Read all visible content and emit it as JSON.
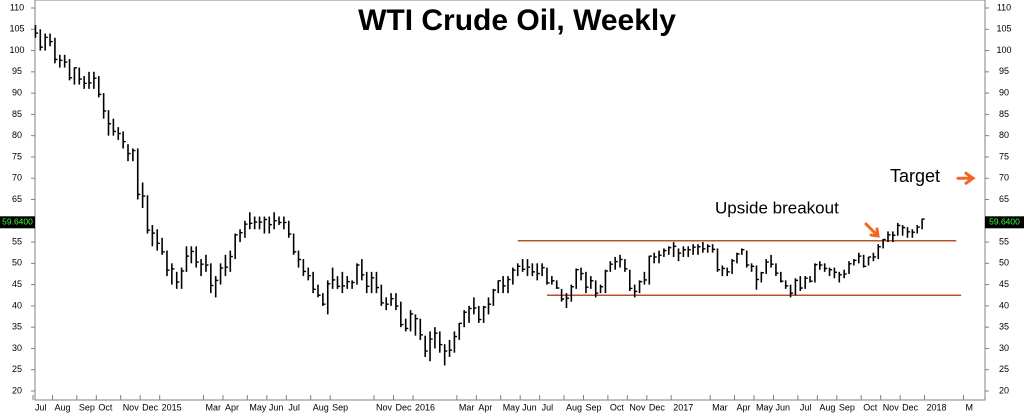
{
  "chart_data": {
    "type": "ohlc",
    "title": "WTI Crude Oil, Weekly",
    "categories": [
      "Jul",
      null,
      null,
      null,
      "Aug",
      null,
      null,
      null,
      null,
      "Sep",
      null,
      null,
      null,
      "Oct",
      null,
      null,
      null,
      null,
      "Nov",
      null,
      null,
      null,
      "Dec",
      null,
      null,
      null,
      "2015",
      null,
      null,
      null,
      null,
      null,
      null,
      null,
      null,
      "Mar",
      null,
      null,
      null,
      "Apr",
      null,
      null,
      null,
      null,
      "May",
      null,
      null,
      null,
      "Jun",
      null,
      null,
      null,
      "Jul",
      null,
      null,
      null,
      null,
      "Aug",
      null,
      null,
      null,
      "Sep",
      null,
      null,
      null,
      null,
      null,
      null,
      null,
      null,
      "Nov",
      null,
      null,
      null,
      "Dec",
      null,
      null,
      null,
      "2016",
      null,
      null,
      null,
      null,
      null,
      null,
      null,
      null,
      "Mar",
      null,
      null,
      null,
      "Apr",
      null,
      null,
      null,
      null,
      "May",
      null,
      null,
      null,
      "Jun",
      null,
      null,
      null,
      "Jul",
      null,
      null,
      null,
      null,
      "Aug",
      null,
      null,
      null,
      "Sep",
      null,
      null,
      null,
      null,
      "Oct",
      null,
      null,
      null,
      "Nov",
      null,
      null,
      null,
      "Dec",
      null,
      null,
      null,
      null,
      "2017",
      null,
      null,
      null,
      null,
      null,
      null,
      null,
      "Mar",
      null,
      null,
      null,
      null,
      "Apr",
      null,
      null,
      null,
      "May",
      null,
      null,
      null,
      "Jun",
      null,
      null,
      null,
      null,
      "Jul",
      null,
      null,
      null,
      "Aug",
      null,
      null,
      null,
      "Sep",
      null,
      null,
      null,
      null,
      "Oct",
      null,
      null,
      null,
      "Nov",
      null,
      null,
      null,
      "Dec",
      null,
      null,
      null,
      null,
      "2018",
      null,
      null,
      null,
      null,
      null,
      null,
      null,
      "M",
      null,
      null,
      null
    ],
    "high": [
      106,
      105,
      104,
      104,
      103,
      99,
      99,
      98,
      96,
      96,
      94,
      95,
      95,
      94,
      90,
      86,
      84,
      82,
      81,
      78,
      77,
      77,
      69,
      66,
      59,
      58,
      56,
      53,
      50,
      48,
      49,
      54,
      54,
      54,
      51,
      52,
      50,
      47,
      50,
      52,
      53,
      57,
      58,
      60,
      62,
      61,
      61,
      61,
      61,
      62,
      61,
      61,
      60,
      57,
      53,
      51,
      49,
      48,
      45,
      43,
      46,
      49,
      47,
      48,
      47,
      46,
      50,
      51,
      48,
      48,
      48,
      45,
      42,
      43,
      43,
      41,
      37,
      39,
      38,
      37,
      33,
      34,
      35,
      34,
      31,
      32,
      34,
      36,
      39,
      40,
      42,
      40,
      40,
      42,
      44,
      46,
      47,
      47,
      49,
      50,
      51,
      51,
      50,
      50,
      50,
      49,
      47,
      46,
      44,
      43,
      45,
      48.8,
      49,
      48,
      47,
      46,
      45,
      48.5,
      50.5,
      51.5,
      52,
      51,
      48.5,
      45,
      46,
      48,
      51.8,
      52.5,
      53,
      53.5,
      54,
      55,
      53.5,
      54,
      54,
      54.5,
      54.5,
      55,
      54.5,
      54.5,
      53.5,
      49.5,
      49,
      51,
      52.5,
      53.5,
      53,
      50,
      49.5,
      48,
      51,
      52,
      50,
      48,
      46,
      45,
      46.5,
      47,
      47,
      47,
      50,
      50.5,
      50,
      49,
      49,
      48,
      48.5,
      50.5,
      51,
      52.5,
      52,
      51.5,
      52.5,
      54.5,
      55.7,
      57.5,
      57.5,
      59.5,
      59,
      58.5,
      58,
      59,
      60.5,
      null,
      null,
      null,
      null,
      null,
      null,
      null,
      null,
      null,
      null,
      null,
      null
    ],
    "low": [
      103,
      100,
      100,
      101,
      97,
      96,
      96,
      93,
      92,
      92,
      91,
      91,
      91,
      89,
      84,
      80,
      80,
      79,
      77,
      74,
      74,
      65,
      63,
      57,
      54,
      53,
      52,
      47,
      45,
      44,
      44,
      48,
      50,
      49,
      47,
      48,
      43,
      42,
      45,
      47,
      48,
      51,
      55,
      56,
      58,
      58,
      58,
      57,
      57,
      58,
      59,
      58,
      56,
      52,
      49,
      47,
      46,
      43,
      42,
      40,
      38,
      44,
      44,
      43,
      44,
      44,
      45,
      46,
      43,
      43,
      43,
      40,
      39,
      40,
      39,
      35,
      34,
      34,
      33,
      32,
      28,
      27,
      30,
      29,
      26,
      28,
      29,
      32,
      35,
      36,
      38,
      36,
      36,
      38,
      40,
      43,
      43,
      43,
      45,
      47,
      48,
      47,
      47,
      46,
      47,
      45,
      45,
      44,
      41,
      39.5,
      41,
      44,
      46,
      43,
      44,
      42,
      43,
      43,
      48,
      48.5,
      49,
      48,
      43.5,
      42,
      43,
      45,
      45,
      50,
      50,
      51.5,
      52,
      51.5,
      50.5,
      51.5,
      51.5,
      52,
      52,
      52.5,
      52.5,
      52.5,
      48,
      47,
      47,
      47.5,
      50,
      52,
      49,
      48,
      43.8,
      45.5,
      47.5,
      49,
      47,
      45.5,
      44,
      42,
      42.5,
      43.5,
      44,
      45.5,
      45.5,
      48.5,
      48,
      47,
      46.5,
      45.5,
      46.5,
      47.5,
      49.5,
      50,
      49,
      49.5,
      50.5,
      51,
      53.5,
      55,
      55,
      56.5,
      56.5,
      56,
      56,
      57,
      58,
      null,
      null,
      null,
      null,
      null,
      null,
      null,
      null,
      null,
      null,
      null,
      null
    ],
    "close": [
      104.1,
      100.8,
      103.1,
      102.1,
      97.9,
      97.7,
      97.3,
      93.6,
      95.96,
      93.3,
      92.3,
      92.4,
      93.5,
      89.7,
      85.8,
      82.8,
      81,
      80.5,
      78.6,
      75.8,
      76.5,
      66.2,
      65.8,
      57.8,
      57.1,
      54.7,
      52.7,
      48.4,
      48.7,
      45.6,
      48.2,
      51.7,
      52.8,
      50.3,
      49.8,
      49.6,
      44.8,
      46,
      48.9,
      49.1,
      51.6,
      56.7,
      57.2,
      59.2,
      59.4,
      59.7,
      59.7,
      60.3,
      59.1,
      60,
      59.6,
      59.6,
      56.9,
      52.7,
      50.9,
      48.1,
      47.1,
      43.9,
      42.5,
      40.4,
      45.2,
      46.1,
      44.6,
      44.7,
      45.7,
      45.5,
      49.6,
      47.3,
      44.6,
      46.6,
      44.3,
      40.7,
      40.4,
      41.7,
      39.97,
      35.6,
      34.7,
      38.1,
      37,
      33.2,
      29.4,
      32.2,
      33.6,
      30.9,
      29.4,
      29.6,
      32.8,
      35.9,
      38.5,
      39.4,
      39.5,
      36.8,
      39.7,
      40.4,
      43.7,
      45.9,
      44.7,
      46.2,
      48.4,
      49.3,
      48.6,
      49.1,
      48,
      47.6,
      48.99,
      45.4,
      45.9,
      44.2,
      41.6,
      41.8,
      44.5,
      48.5,
      47.6,
      44.4,
      45.9,
      43,
      44.5,
      48.2,
      49.8,
      50.4,
      50.9,
      48.7,
      44.1,
      43.4,
      45.7,
      46.1,
      51.7,
      51.5,
      51.9,
      53,
      53.7,
      54,
      52.4,
      53.2,
      53.2,
      53.8,
      53.9,
      53.4,
      54,
      53.3,
      48.5,
      48.8,
      48,
      50.6,
      52.2,
      53.2,
      49.6,
      49.3,
      46.2,
      47.8,
      50.3,
      49.8,
      47.7,
      45.8,
      44.7,
      43,
      46,
      44.2,
      46.5,
      45.8,
      49.7,
      49.6,
      48.8,
      48.5,
      47.9,
      47.3,
      47.5,
      49.9,
      50.7,
      51.7,
      49.3,
      51.5,
      51.5,
      53.9,
      55.6,
      56.7,
      56.6,
      58.9,
      58.4,
      57.4,
      57.3,
      58.5,
      60.4,
      null,
      null,
      null,
      null,
      null,
      null,
      null,
      null,
      null,
      null,
      null,
      null
    ],
    "color": "#000000",
    "ylim": [
      20,
      110
    ],
    "yticks": [
      20,
      25,
      30,
      35,
      40,
      45,
      50,
      55,
      60,
      65,
      70,
      75,
      80,
      85,
      90,
      95,
      100,
      105,
      110
    ],
    "grid": false,
    "levels": [
      55.3,
      42.5
    ],
    "level_color": "#b5532a",
    "last_price": {
      "value": 59.64,
      "label": "59.6400"
    },
    "annotation": "Upside breakout",
    "target": {
      "value": 70,
      "label": "Target"
    },
    "arrow_color": "#f26522"
  }
}
